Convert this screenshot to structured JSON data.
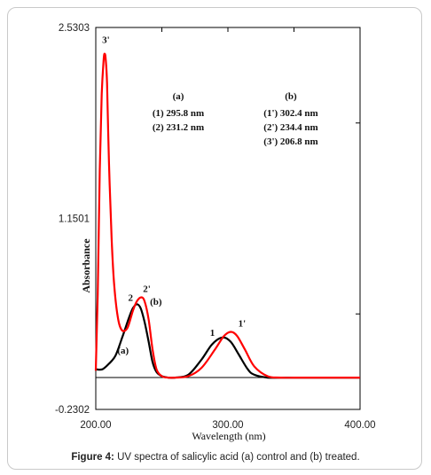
{
  "chart_data": {
    "type": "line",
    "xlabel": "Wavelength (nm)",
    "ylabel": "Absorbance",
    "xlim": [
      200,
      400
    ],
    "ylim": [
      -0.2302,
      2.5303
    ],
    "x_ticks": [
      "200.00",
      "300.00",
      "400.00"
    ],
    "y_ticks": [
      "2.5303",
      "1.1501",
      "-0.2302"
    ],
    "grid": false,
    "series": [
      {
        "color": "#000000",
        "x": [
          200,
          205,
          210,
          215,
          220,
          225,
          228,
          231.2,
          234,
          237,
          240,
          243,
          246,
          250,
          255,
          260,
          270,
          280,
          288,
          295.8,
          302,
          308,
          315,
          320,
          330,
          340,
          360,
          400
        ],
        "y": [
          0.06,
          0.06,
          0.1,
          0.16,
          0.29,
          0.43,
          0.5,
          0.53,
          0.5,
          0.4,
          0.26,
          0.11,
          0.04,
          0.01,
          0.0,
          0.0,
          0.02,
          0.13,
          0.24,
          0.29,
          0.26,
          0.17,
          0.06,
          0.02,
          0.0,
          0.0,
          0.0,
          0.0
        ]
      },
      {
        "color": "#ff0000",
        "x": [
          200,
          201.5,
          203,
          204.5,
          206,
          206.8,
          207.5,
          208.5,
          210,
          212,
          214,
          217,
          220,
          224,
          228,
          231,
          234.4,
          237,
          240,
          243,
          246,
          250,
          255,
          260,
          270,
          280,
          290,
          297,
          302.4,
          307,
          313,
          320,
          330,
          340,
          360,
          400
        ],
        "y": [
          0.05,
          0.6,
          1.5,
          2.05,
          2.3,
          2.34,
          2.3,
          2.13,
          1.55,
          1.0,
          0.66,
          0.42,
          0.34,
          0.36,
          0.48,
          0.55,
          0.58,
          0.55,
          0.42,
          0.2,
          0.06,
          0.01,
          0.0,
          0.0,
          0.01,
          0.07,
          0.2,
          0.3,
          0.33,
          0.3,
          0.2,
          0.08,
          0.01,
          0.0,
          0.0,
          0.0
        ]
      }
    ],
    "labels": [
      {
        "text": "3'",
        "x": 206.8,
        "y": 2.34,
        "dx": -3,
        "dy": -12
      },
      {
        "text": "2",
        "x": 231.2,
        "y": 0.53,
        "dx": -10,
        "dy": -4
      },
      {
        "text": "2'",
        "x": 234.4,
        "y": 0.58,
        "dx": 2,
        "dy": -6
      },
      {
        "text": "(b)",
        "x": 237,
        "y": 0.55,
        "dx": 6,
        "dy": 4
      },
      {
        "text": "(a)",
        "x": 215,
        "y": 0.16,
        "dx": 2,
        "dy": -2
      },
      {
        "text": "1",
        "x": 295.8,
        "y": 0.29,
        "dx": -14,
        "dy": -2
      },
      {
        "text": "1'",
        "x": 302.4,
        "y": 0.33,
        "dx": 8,
        "dy": -6
      }
    ],
    "legend_blocks": [
      {
        "title": "(a)",
        "lines": [
          "(1) 295.8 nm",
          "(2) 231.2 nm"
        ]
      },
      {
        "title": "(b)",
        "lines": [
          "(1') 302.4 nm",
          "(2') 234.4 nm",
          "(3') 206.8 nm"
        ]
      }
    ]
  },
  "caption": {
    "label": "Figure 4:",
    "text": " UV spectra of salicylic acid (a) control and (b) treated."
  }
}
